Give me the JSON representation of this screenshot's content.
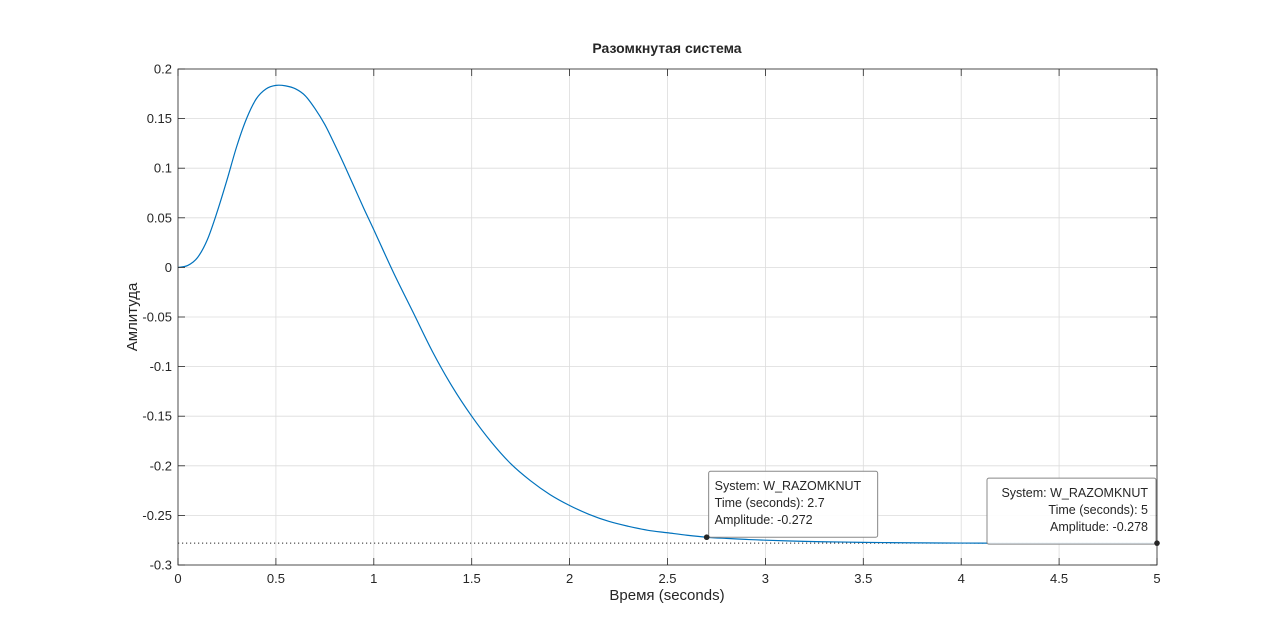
{
  "chart_data": {
    "type": "line",
    "title": "Разомкнутая система",
    "xlabel": "Время (seconds)",
    "ylabel": "Амлитуда",
    "xlim": [
      0,
      5
    ],
    "ylim": [
      -0.3,
      0.2
    ],
    "grid": true,
    "xticks": [
      0,
      0.5,
      1,
      1.5,
      2,
      2.5,
      3,
      3.5,
      4,
      4.5,
      5
    ],
    "xtick_labels": [
      "0",
      "0.5",
      "1",
      "1.5",
      "2",
      "2.5",
      "3",
      "3.5",
      "4",
      "4.5",
      "5"
    ],
    "yticks": [
      0.2,
      0.15,
      0.1,
      0.05,
      0,
      -0.05,
      -0.1,
      -0.15,
      -0.2,
      -0.25,
      -0.3
    ],
    "ytick_labels": [
      "0.2",
      "0.15",
      "0.1",
      "0.05",
      "0",
      "-0.05",
      "-0.1",
      "-0.15",
      "-0.2",
      "-0.25",
      "-0.3"
    ],
    "series": [
      {
        "color": "#0072bd",
        "x": [
          0,
          0.05,
          0.1,
          0.15,
          0.2,
          0.25,
          0.3,
          0.35,
          0.4,
          0.45,
          0.5,
          0.55,
          0.6,
          0.65,
          0.7,
          0.75,
          0.8,
          0.85,
          0.9,
          0.95,
          1.0,
          1.1,
          1.2,
          1.3,
          1.4,
          1.5,
          1.6,
          1.7,
          1.8,
          1.9,
          2.0,
          2.1,
          2.2,
          2.3,
          2.4,
          2.5,
          2.6,
          2.7,
          2.8,
          2.9,
          3.0,
          3.2,
          3.4,
          3.6,
          3.8,
          4.0,
          4.2,
          4.4,
          4.6,
          4.8,
          5.0
        ],
        "y": [
          0,
          0.002,
          0.01,
          0.028,
          0.056,
          0.088,
          0.122,
          0.15,
          0.17,
          0.18,
          0.1835,
          0.183,
          0.18,
          0.173,
          0.16,
          0.144,
          0.124,
          0.103,
          0.081,
          0.059,
          0.038,
          -0.005,
          -0.045,
          -0.085,
          -0.12,
          -0.15,
          -0.176,
          -0.198,
          -0.215,
          -0.229,
          -0.24,
          -0.249,
          -0.256,
          -0.261,
          -0.265,
          -0.2675,
          -0.27,
          -0.272,
          -0.2732,
          -0.2742,
          -0.275,
          -0.2762,
          -0.2769,
          -0.2774,
          -0.2777,
          -0.2779,
          -0.278,
          -0.278,
          -0.278,
          -0.278,
          -0.278
        ]
      }
    ],
    "reference_line": {
      "y": -0.278,
      "style": "dotted",
      "color": "#262626"
    },
    "datatips": [
      {
        "x": 2.7,
        "y": -0.272,
        "lines": [
          "System: W_RAZOMKNUT",
          "Time (seconds): 2.7",
          "Amplitude: -0.272"
        ],
        "align": "left",
        "placement": "above-right"
      },
      {
        "x": 5,
        "y": -0.278,
        "lines": [
          "System: W_RAZOMKNUT",
          "Time (seconds): 5",
          "Amplitude: -0.278"
        ],
        "align": "right",
        "placement": "above-left"
      }
    ]
  }
}
